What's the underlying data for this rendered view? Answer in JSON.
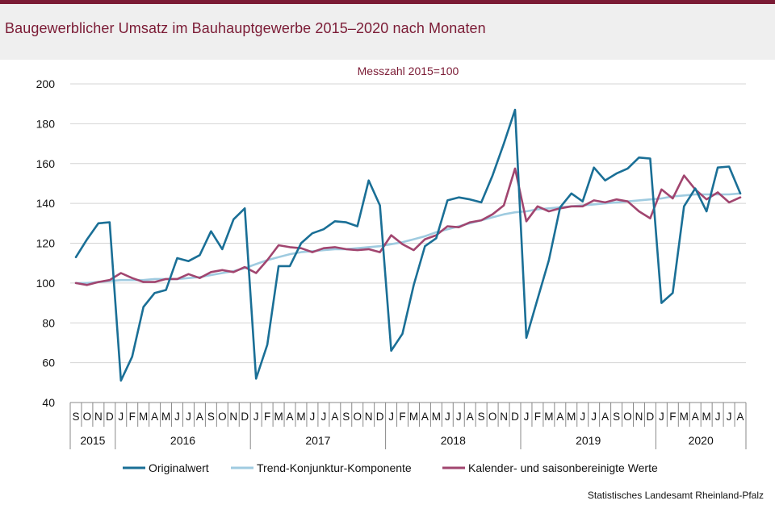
{
  "header": {
    "title": "Baugewerblicher Umsatz im Bauhauptgewerbe 2015–2020 nach Monaten"
  },
  "source": "Statistisches Landesamt Rheinland-Pfalz",
  "chart_data": {
    "type": "line",
    "title": "Baugewerblicher Umsatz im Bauhauptgewerbe 2015–2020 nach Monaten",
    "subtitle": "Messzahl 2015=100",
    "xlabel": "",
    "ylabel": "",
    "ylim": [
      40,
      200
    ],
    "yticks": [
      40,
      60,
      80,
      100,
      120,
      140,
      160,
      180,
      200
    ],
    "grid": true,
    "legend_position": "bottom",
    "months": [
      "S",
      "O",
      "N",
      "D",
      "J",
      "F",
      "M",
      "A",
      "M",
      "J",
      "J",
      "A",
      "S",
      "O",
      "N",
      "D",
      "J",
      "F",
      "M",
      "A",
      "M",
      "J",
      "J",
      "A",
      "S",
      "O",
      "N",
      "D",
      "J",
      "F",
      "M",
      "A",
      "M",
      "J",
      "J",
      "A",
      "S",
      "O",
      "N",
      "D",
      "J",
      "F",
      "M",
      "A",
      "M",
      "J",
      "J",
      "A",
      "S",
      "O",
      "N",
      "D",
      "J",
      "F",
      "M",
      "A",
      "M",
      "J",
      "J",
      "A"
    ],
    "years": [
      {
        "label": "2015",
        "start": 0,
        "count": 4
      },
      {
        "label": "2016",
        "start": 4,
        "count": 12
      },
      {
        "label": "2017",
        "start": 16,
        "count": 12
      },
      {
        "label": "2018",
        "start": 28,
        "count": 12
      },
      {
        "label": "2019",
        "start": 40,
        "count": 12
      },
      {
        "label": "2020",
        "start": 52,
        "count": 8
      }
    ],
    "series": [
      {
        "name": "Originalwert",
        "color": "#1a6f96",
        "values": [
          113,
          122,
          130,
          130.5,
          51,
          63,
          88,
          95,
          96.5,
          112.5,
          111,
          114,
          126,
          117,
          132,
          137.5,
          52,
          69,
          108.5,
          108.5,
          120,
          125,
          127,
          131,
          130.5,
          128.5,
          151.5,
          139,
          66,
          74.5,
          99,
          118.5,
          122.5,
          141.5,
          143,
          142,
          140.5,
          154,
          170,
          187,
          72.5,
          92,
          111.5,
          138,
          145,
          141,
          158,
          151.5,
          155,
          157.5,
          163,
          162.5,
          90,
          95,
          138.5,
          147.5,
          136,
          158,
          158.5,
          145
        ]
      },
      {
        "name": "Trend-Konjunktur-Komponente",
        "color": "#9fcbe0",
        "values": [
          100,
          100,
          100.5,
          101,
          101.5,
          101.5,
          101.5,
          102,
          102,
          102,
          102.5,
          103,
          104,
          105,
          106,
          107.5,
          109.5,
          111.5,
          113,
          114.5,
          115.5,
          116,
          116.5,
          117,
          117,
          117.5,
          118,
          118.5,
          119.5,
          120.5,
          122,
          123.5,
          125.5,
          127,
          128.5,
          130,
          131.5,
          133,
          134.5,
          135.5,
          136,
          137,
          137.5,
          138,
          138.5,
          139,
          139.5,
          140,
          140.5,
          141,
          141.5,
          142,
          142.5,
          143.5,
          144,
          144.5,
          144.5,
          144.5,
          144.5,
          145
        ]
      },
      {
        "name": "Kalender- und saisonbereinigte Werte",
        "color": "#a1456f",
        "values": [
          100,
          99,
          100.5,
          101.5,
          105,
          102.5,
          100.5,
          100.5,
          102,
          102,
          104.5,
          102.5,
          105.5,
          106.5,
          105.5,
          108,
          105,
          111.5,
          119,
          118,
          117.5,
          115.5,
          117.5,
          118,
          117,
          116.5,
          117,
          115.5,
          124,
          119.5,
          116.5,
          122,
          124,
          128.5,
          128,
          130.5,
          131.5,
          134.5,
          139,
          157.5,
          131,
          138.5,
          136,
          137.5,
          138.5,
          138.5,
          141.5,
          140.5,
          142,
          141,
          136,
          132.5,
          147,
          142.5,
          154,
          147,
          142,
          145.5,
          140.5,
          143
        ]
      }
    ]
  }
}
